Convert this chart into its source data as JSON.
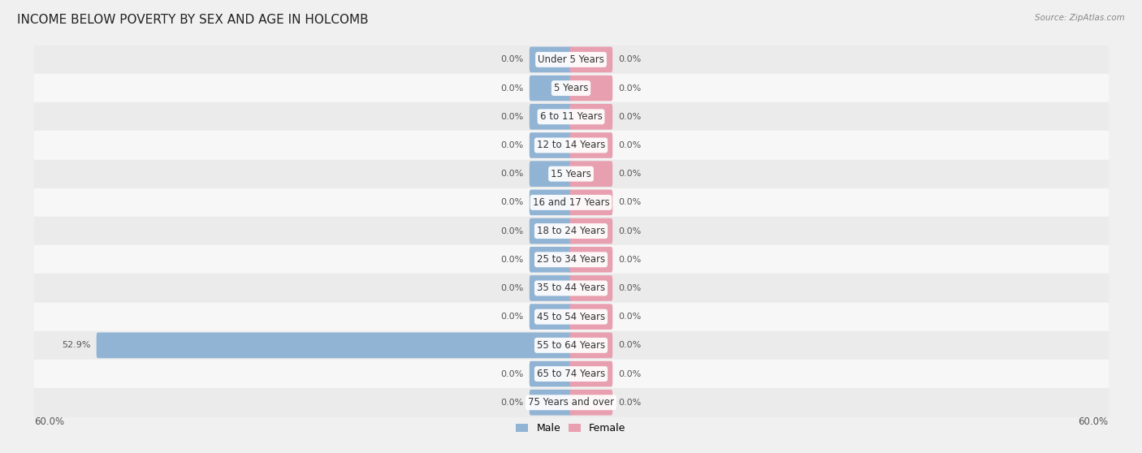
{
  "title": "INCOME BELOW POVERTY BY SEX AND AGE IN HOLCOMB",
  "source": "Source: ZipAtlas.com",
  "categories": [
    "Under 5 Years",
    "5 Years",
    "6 to 11 Years",
    "12 to 14 Years",
    "15 Years",
    "16 and 17 Years",
    "18 to 24 Years",
    "25 to 34 Years",
    "35 to 44 Years",
    "45 to 54 Years",
    "55 to 64 Years",
    "65 to 74 Years",
    "75 Years and over"
  ],
  "male_values": [
    0.0,
    0.0,
    0.0,
    0.0,
    0.0,
    0.0,
    0.0,
    0.0,
    0.0,
    0.0,
    52.9,
    0.0,
    0.0
  ],
  "female_values": [
    0.0,
    0.0,
    0.0,
    0.0,
    0.0,
    0.0,
    0.0,
    0.0,
    0.0,
    0.0,
    0.0,
    0.0,
    0.0
  ],
  "male_color": "#92b4d4",
  "female_color": "#e8a0b0",
  "row_bg_even": "#ebebeb",
  "row_bg_odd": "#f7f7f7",
  "axis_limit": 60.0,
  "title_fontsize": 11,
  "category_fontsize": 8.5,
  "value_fontsize": 8,
  "stub_size": 4.5
}
